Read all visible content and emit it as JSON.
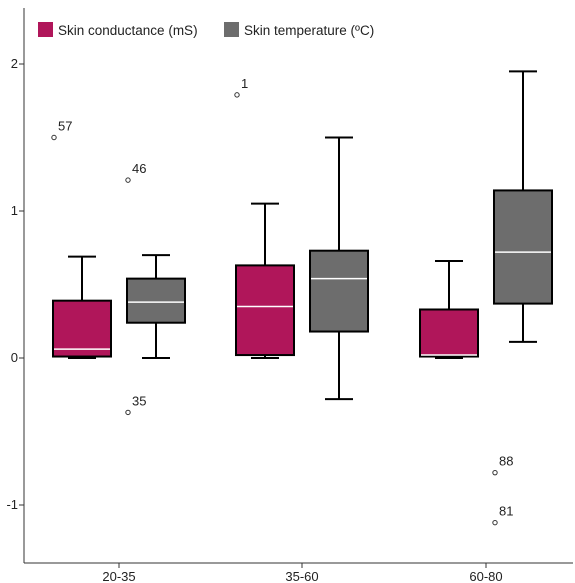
{
  "chart_data": {
    "type": "box",
    "title": "",
    "xlabel": "",
    "ylabel": "",
    "ylim": [
      -1.35,
      2.35
    ],
    "categories": [
      "20-35",
      "35-60",
      "60-80"
    ],
    "y_ticks": [
      {
        "value": 2,
        "label": "2"
      },
      {
        "value": 1,
        "label": "1"
      },
      {
        "value": 0,
        "label": "0"
      },
      {
        "value": -1,
        "label": "-1"
      }
    ],
    "legend": {
      "placement": "top-left"
    },
    "grid": false,
    "series": [
      {
        "name": "Skin conductance (mS)",
        "color": "#b0165a",
        "boxes": [
          {
            "category": "20-35",
            "whisker_low": 0.0,
            "q1": 0.01,
            "median": 0.06,
            "q3": 0.39,
            "whisker_high": 0.69,
            "outliers": [
              {
                "value": 1.5,
                "label": "57"
              }
            ]
          },
          {
            "category": "35-60",
            "whisker_low": 0.0,
            "q1": 0.02,
            "median": 0.35,
            "q3": 0.63,
            "whisker_high": 1.05,
            "outliers": [
              {
                "value": 1.79,
                "label": "1"
              }
            ]
          },
          {
            "category": "60-80",
            "whisker_low": 0.0,
            "q1": 0.01,
            "median": 0.02,
            "q3": 0.33,
            "whisker_high": 0.66,
            "outliers": []
          }
        ]
      },
      {
        "name": "Skin temperature (ºC)",
        "color": "#6d6d6d",
        "boxes": [
          {
            "category": "20-35",
            "whisker_low": 0.0,
            "q1": 0.24,
            "median": 0.38,
            "q3": 0.54,
            "whisker_high": 0.7,
            "outliers": [
              {
                "value": 1.21,
                "label": "46"
              },
              {
                "value": -0.37,
                "label": "35"
              }
            ]
          },
          {
            "category": "35-60",
            "whisker_low": -0.28,
            "q1": 0.18,
            "median": 0.54,
            "q3": 0.73,
            "whisker_high": 1.5,
            "outliers": []
          },
          {
            "category": "60-80",
            "whisker_low": 0.11,
            "q1": 0.37,
            "median": 0.72,
            "q3": 1.14,
            "whisker_high": 1.95,
            "outliers": [
              {
                "value": -0.78,
                "label": "88"
              },
              {
                "value": -1.12,
                "label": "81"
              }
            ]
          }
        ]
      }
    ]
  }
}
